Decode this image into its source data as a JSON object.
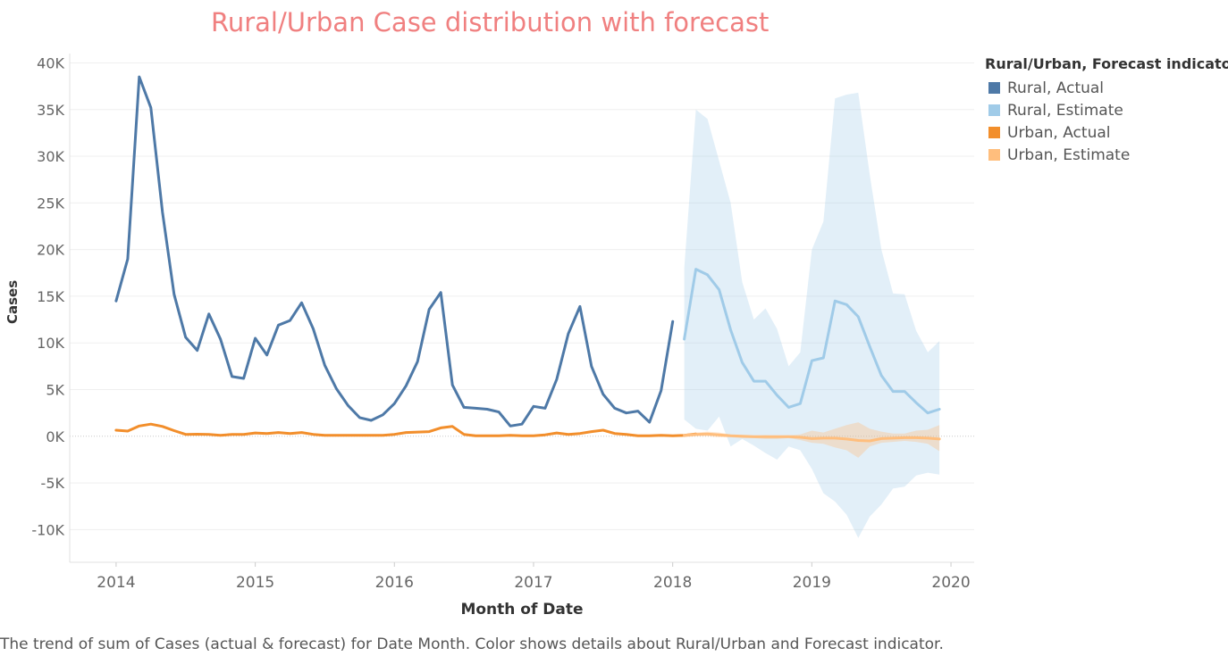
{
  "chart_data": {
    "type": "line",
    "title": "Rural/Urban Case distribution with forecast",
    "xlabel": "Month of Date",
    "ylabel": "Cases",
    "x_ticks": [
      "2014",
      "2015",
      "2016",
      "2017",
      "2018",
      "2019",
      "2020"
    ],
    "y_ticks": [
      {
        "value": 40000,
        "label": "40K"
      },
      {
        "value": 35000,
        "label": "35K"
      },
      {
        "value": 30000,
        "label": "30K"
      },
      {
        "value": 25000,
        "label": "25K"
      },
      {
        "value": 20000,
        "label": "20K"
      },
      {
        "value": 15000,
        "label": "15K"
      },
      {
        "value": 10000,
        "label": "10K"
      },
      {
        "value": 5000,
        "label": "5K"
      },
      {
        "value": 0,
        "label": "0K"
      },
      {
        "value": -5000,
        "label": "-5K"
      },
      {
        "value": -10000,
        "label": "-10K"
      }
    ],
    "xlim": [
      "2013-09",
      "2020-03"
    ],
    "ylim": [
      -13500,
      41000
    ],
    "grid": true,
    "legend_placement": "right",
    "legend_title": "Rural/Urban, Forecast indicator",
    "caption": "The trend of sum of Cases (actual & forecast)  for Date Month.  Color shows details about Rural/Urban and Forecast indicator.",
    "series": [
      {
        "name": "Rural, Actual",
        "color": "#4e79a7",
        "start": "2014-01",
        "values": [
          14500,
          19000,
          38500,
          35200,
          24000,
          15200,
          10600,
          9200,
          13100,
          10400,
          6400,
          6200,
          10500,
          8700,
          11900,
          12400,
          14300,
          11500,
          7600,
          5100,
          3300,
          2000,
          1700,
          2300,
          3500,
          5400,
          8000,
          13600,
          15400,
          5500,
          3100,
          3000,
          2900,
          2600,
          1100,
          1300,
          3200,
          3000,
          6100,
          11000,
          13900,
          7500,
          4500,
          3000,
          2500,
          2700,
          1500,
          4900,
          12300
        ]
      },
      {
        "name": "Rural, Estimate",
        "color": "#a0cbe8",
        "start": "2018-02",
        "values": [
          10400,
          17900,
          17300,
          15700,
          11400,
          7900,
          5900,
          5900,
          4400,
          3100,
          3500,
          8100,
          8400,
          14500,
          14100,
          12800,
          9600,
          6500,
          4800,
          4800,
          3600,
          2500,
          2900
        ],
        "upper": [
          18000,
          35000,
          34000,
          29500,
          25000,
          16500,
          12500,
          13700,
          11500,
          7500,
          9000,
          20000,
          23000,
          36200,
          36600,
          36800,
          28000,
          20000,
          15300,
          15200,
          11300,
          9000,
          10200
        ],
        "lower": [
          1800,
          800,
          600,
          2100,
          -1100,
          -300,
          -1000,
          -1800,
          -2500,
          -1100,
          -1500,
          -3500,
          -6100,
          -7000,
          -8400,
          -10900,
          -8600,
          -7300,
          -5600,
          -5400,
          -4200,
          -3900,
          -4100
        ]
      },
      {
        "name": "Urban, Actual",
        "color": "#f28e2b",
        "start": "2014-01",
        "values": [
          650,
          560,
          1100,
          1300,
          1050,
          600,
          200,
          220,
          200,
          100,
          200,
          200,
          350,
          300,
          400,
          300,
          400,
          200,
          100,
          100,
          100,
          100,
          100,
          100,
          200,
          400,
          450,
          500,
          900,
          1050,
          200,
          50,
          50,
          50,
          100,
          50,
          50,
          150,
          350,
          200,
          300,
          500,
          650,
          300,
          200,
          50,
          50,
          100,
          50,
          100,
          250
        ]
      },
      {
        "name": "Urban, Estimate",
        "color": "#ffbe7d",
        "start": "2018-02",
        "values": [
          100,
          200,
          250,
          150,
          50,
          0,
          -50,
          -50,
          -50,
          -50,
          -100,
          -250,
          -200,
          -200,
          -300,
          -450,
          -500,
          -250,
          -200,
          -150,
          -150,
          -200,
          -300
        ],
        "upper": [
          250,
          400,
          500,
          400,
          200,
          100,
          50,
          100,
          50,
          100,
          200,
          600,
          400,
          800,
          1200,
          1500,
          800,
          500,
          300,
          300,
          600,
          700,
          1200
        ],
        "lower": [
          -100,
          0,
          0,
          -100,
          -100,
          -200,
          -200,
          -300,
          -300,
          -200,
          -400,
          -700,
          -800,
          -1200,
          -1500,
          -2300,
          -1100,
          -700,
          -600,
          -500,
          -600,
          -800,
          -1600
        ]
      }
    ]
  }
}
